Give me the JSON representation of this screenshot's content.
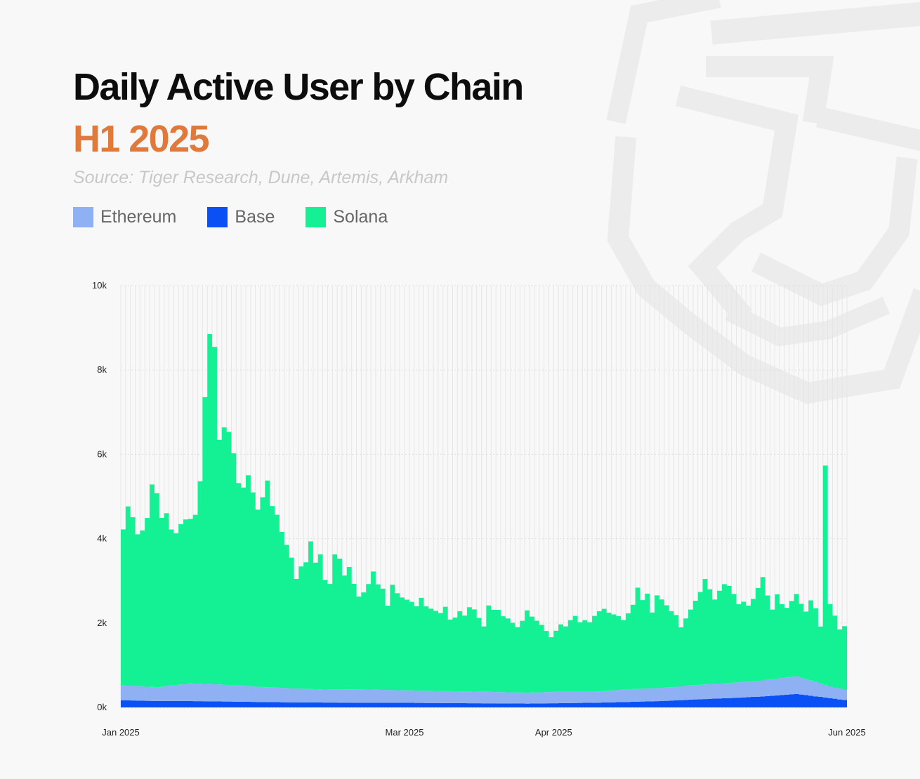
{
  "colors": {
    "background": "#f8f8f8",
    "title": "#0d0d0d",
    "subtitle": "#e07a3c",
    "source": "#c8c8c8",
    "watermark": "#ececec"
  },
  "watermark_icon": "tiger-head-logo-icon",
  "chart_data": {
    "type": "area",
    "stacked": true,
    "title": "Daily Active User by Chain",
    "subtitle": "H1 2025",
    "source": "Source: Tiger Research, Dune, Artemis, Arkham",
    "legend_position": "top-left",
    "grid": true,
    "x_range": [
      "2025-01-01",
      "2025-06-01"
    ],
    "x_tick_labels": [
      "Jan 2025",
      "Mar 2025",
      "Apr 2025",
      "Jun 2025"
    ],
    "x_ticks": [
      "2025-01-01",
      "2025-03-01",
      "2025-04-01",
      "2025-06-01"
    ],
    "ylim": [
      0,
      10000
    ],
    "y_ticks": [
      0,
      2000,
      4000,
      6000,
      8000,
      10000
    ],
    "y_tick_labels": [
      "0k",
      "2k",
      "4k",
      "6k",
      "8k",
      "10k"
    ],
    "xlabel": "",
    "ylabel": "",
    "series": [
      {
        "name": "Ethereum",
        "color": "#8fb0f2",
        "points": [
          [
            "2025-01-01",
            350
          ],
          [
            "2025-01-08",
            330
          ],
          [
            "2025-01-15",
            420
          ],
          [
            "2025-01-22",
            400
          ],
          [
            "2025-01-29",
            360
          ],
          [
            "2025-02-05",
            330
          ],
          [
            "2025-02-12",
            310
          ],
          [
            "2025-02-19",
            320
          ],
          [
            "2025-02-26",
            300
          ],
          [
            "2025-03-05",
            290
          ],
          [
            "2025-03-12",
            280
          ],
          [
            "2025-03-19",
            270
          ],
          [
            "2025-03-26",
            260
          ],
          [
            "2025-04-02",
            270
          ],
          [
            "2025-04-09",
            260
          ],
          [
            "2025-04-16",
            300
          ],
          [
            "2025-04-23",
            310
          ],
          [
            "2025-04-30",
            340
          ],
          [
            "2025-05-07",
            360
          ],
          [
            "2025-05-14",
            380
          ],
          [
            "2025-05-21",
            420
          ],
          [
            "2025-05-28",
            280
          ],
          [
            "2025-06-01",
            240
          ]
        ]
      },
      {
        "name": "Base",
        "color": "#0a50f5",
        "points": [
          [
            "2025-01-01",
            170
          ],
          [
            "2025-01-08",
            150
          ],
          [
            "2025-01-15",
            150
          ],
          [
            "2025-01-22",
            140
          ],
          [
            "2025-01-29",
            130
          ],
          [
            "2025-02-05",
            120
          ],
          [
            "2025-02-12",
            115
          ],
          [
            "2025-02-19",
            110
          ],
          [
            "2025-02-26",
            110
          ],
          [
            "2025-03-05",
            105
          ],
          [
            "2025-03-12",
            100
          ],
          [
            "2025-03-19",
            95
          ],
          [
            "2025-03-26",
            90
          ],
          [
            "2025-04-02",
            100
          ],
          [
            "2025-04-09",
            110
          ],
          [
            "2025-04-16",
            130
          ],
          [
            "2025-04-23",
            150
          ],
          [
            "2025-04-30",
            190
          ],
          [
            "2025-05-07",
            220
          ],
          [
            "2025-05-14",
            260
          ],
          [
            "2025-05-21",
            320
          ],
          [
            "2025-05-28",
            220
          ],
          [
            "2025-06-01",
            160
          ]
        ]
      },
      {
        "name": "Solana",
        "color": "#14f195",
        "points": [
          [
            "2025-01-01",
            3700
          ],
          [
            "2025-01-02",
            4250
          ],
          [
            "2025-01-03",
            4000
          ],
          [
            "2025-01-04",
            3600
          ],
          [
            "2025-01-05",
            3700
          ],
          [
            "2025-01-06",
            4000
          ],
          [
            "2025-01-07",
            4800
          ],
          [
            "2025-01-08",
            4600
          ],
          [
            "2025-01-09",
            4000
          ],
          [
            "2025-01-10",
            4100
          ],
          [
            "2025-01-11",
            3700
          ],
          [
            "2025-01-12",
            3600
          ],
          [
            "2025-01-13",
            3800
          ],
          [
            "2025-01-14",
            3900
          ],
          [
            "2025-01-15",
            3900
          ],
          [
            "2025-01-16",
            4000
          ],
          [
            "2025-01-17",
            4800
          ],
          [
            "2025-01-18",
            6800
          ],
          [
            "2025-01-19",
            8300
          ],
          [
            "2025-01-20",
            8000
          ],
          [
            "2025-01-21",
            5800
          ],
          [
            "2025-01-22",
            6100
          ],
          [
            "2025-01-23",
            6000
          ],
          [
            "2025-01-24",
            5500
          ],
          [
            "2025-01-25",
            4800
          ],
          [
            "2025-01-26",
            4700
          ],
          [
            "2025-01-27",
            5000
          ],
          [
            "2025-01-28",
            4600
          ],
          [
            "2025-01-29",
            4200
          ],
          [
            "2025-01-30",
            4500
          ],
          [
            "2025-01-31",
            4900
          ],
          [
            "2025-02-01",
            4300
          ],
          [
            "2025-02-02",
            4100
          ],
          [
            "2025-02-03",
            3700
          ],
          [
            "2025-02-04",
            3400
          ],
          [
            "2025-02-05",
            3100
          ],
          [
            "2025-02-06",
            2600
          ],
          [
            "2025-02-07",
            2900
          ],
          [
            "2025-02-08",
            3000
          ],
          [
            "2025-02-09",
            3500
          ],
          [
            "2025-02-10",
            3000
          ],
          [
            "2025-02-11",
            3200
          ],
          [
            "2025-02-12",
            2600
          ],
          [
            "2025-02-13",
            2500
          ],
          [
            "2025-02-14",
            3200
          ],
          [
            "2025-02-15",
            3100
          ],
          [
            "2025-02-16",
            2700
          ],
          [
            "2025-02-17",
            2900
          ],
          [
            "2025-02-18",
            2500
          ],
          [
            "2025-02-19",
            2200
          ],
          [
            "2025-02-20",
            2300
          ],
          [
            "2025-02-21",
            2500
          ],
          [
            "2025-02-22",
            2800
          ],
          [
            "2025-02-23",
            2500
          ],
          [
            "2025-02-24",
            2400
          ],
          [
            "2025-02-25",
            2000
          ],
          [
            "2025-02-26",
            2500
          ],
          [
            "2025-02-27",
            2300
          ],
          [
            "2025-02-28",
            2200
          ],
          [
            "2025-03-01",
            2150
          ],
          [
            "2025-03-02",
            2100
          ],
          [
            "2025-03-03",
            2000
          ],
          [
            "2025-03-04",
            2200
          ],
          [
            "2025-03-05",
            2000
          ],
          [
            "2025-03-06",
            1950
          ],
          [
            "2025-03-07",
            1900
          ],
          [
            "2025-03-08",
            1850
          ],
          [
            "2025-03-09",
            2000
          ],
          [
            "2025-03-10",
            1700
          ],
          [
            "2025-03-11",
            1750
          ],
          [
            "2025-03-12",
            1900
          ],
          [
            "2025-03-13",
            1800
          ],
          [
            "2025-03-14",
            2000
          ],
          [
            "2025-03-15",
            1950
          ],
          [
            "2025-03-16",
            1750
          ],
          [
            "2025-03-17",
            1550
          ],
          [
            "2025-03-18",
            2050
          ],
          [
            "2025-03-19",
            1950
          ],
          [
            "2025-03-20",
            1950
          ],
          [
            "2025-03-21",
            1800
          ],
          [
            "2025-03-22",
            1750
          ],
          [
            "2025-03-23",
            1650
          ],
          [
            "2025-03-24",
            1550
          ],
          [
            "2025-03-25",
            1700
          ],
          [
            "2025-03-26",
            1950
          ],
          [
            "2025-03-27",
            1800
          ],
          [
            "2025-03-28",
            1700
          ],
          [
            "2025-03-29",
            1600
          ],
          [
            "2025-03-30",
            1450
          ],
          [
            "2025-03-31",
            1300
          ],
          [
            "2025-04-01",
            1450
          ],
          [
            "2025-04-02",
            1600
          ],
          [
            "2025-04-03",
            1550
          ],
          [
            "2025-04-04",
            1700
          ],
          [
            "2025-04-05",
            1800
          ],
          [
            "2025-04-06",
            1650
          ],
          [
            "2025-04-07",
            1700
          ],
          [
            "2025-04-08",
            1650
          ],
          [
            "2025-04-09",
            1800
          ],
          [
            "2025-04-10",
            1900
          ],
          [
            "2025-04-11",
            1950
          ],
          [
            "2025-04-12",
            1850
          ],
          [
            "2025-04-13",
            1800
          ],
          [
            "2025-04-14",
            1750
          ],
          [
            "2025-04-15",
            1650
          ],
          [
            "2025-04-16",
            1800
          ],
          [
            "2025-04-17",
            2000
          ],
          [
            "2025-04-18",
            2400
          ],
          [
            "2025-04-19",
            2100
          ],
          [
            "2025-04-20",
            2250
          ],
          [
            "2025-04-21",
            1800
          ],
          [
            "2025-04-22",
            2200
          ],
          [
            "2025-04-23",
            2100
          ],
          [
            "2025-04-24",
            1950
          ],
          [
            "2025-04-25",
            1800
          ],
          [
            "2025-04-26",
            1700
          ],
          [
            "2025-04-27",
            1400
          ],
          [
            "2025-04-28",
            1600
          ],
          [
            "2025-04-29",
            1800
          ],
          [
            "2025-04-30",
            2000
          ],
          [
            "2025-05-01",
            2200
          ],
          [
            "2025-05-02",
            2500
          ],
          [
            "2025-05-03",
            2250
          ],
          [
            "2025-05-04",
            2000
          ],
          [
            "2025-05-05",
            2200
          ],
          [
            "2025-05-06",
            2350
          ],
          [
            "2025-05-07",
            2300
          ],
          [
            "2025-05-08",
            2100
          ],
          [
            "2025-05-09",
            1850
          ],
          [
            "2025-05-10",
            1900
          ],
          [
            "2025-05-11",
            1800
          ],
          [
            "2025-05-12",
            1950
          ],
          [
            "2025-05-13",
            2200
          ],
          [
            "2025-05-14",
            2450
          ],
          [
            "2025-05-15",
            2000
          ],
          [
            "2025-05-16",
            1650
          ],
          [
            "2025-05-17",
            2000
          ],
          [
            "2025-05-18",
            1750
          ],
          [
            "2025-05-19",
            1650
          ],
          [
            "2025-05-20",
            1800
          ],
          [
            "2025-05-21",
            1950
          ],
          [
            "2025-05-22",
            1750
          ],
          [
            "2025-05-23",
            1600
          ],
          [
            "2025-05-24",
            1900
          ],
          [
            "2025-05-25",
            1750
          ],
          [
            "2025-05-26",
            1350
          ],
          [
            "2025-05-27",
            5200
          ],
          [
            "2025-05-28",
            1950
          ],
          [
            "2025-05-29",
            1700
          ],
          [
            "2025-05-30",
            1400
          ],
          [
            "2025-05-31",
            1500
          ],
          [
            "2025-06-01",
            1300
          ]
        ]
      }
    ]
  }
}
